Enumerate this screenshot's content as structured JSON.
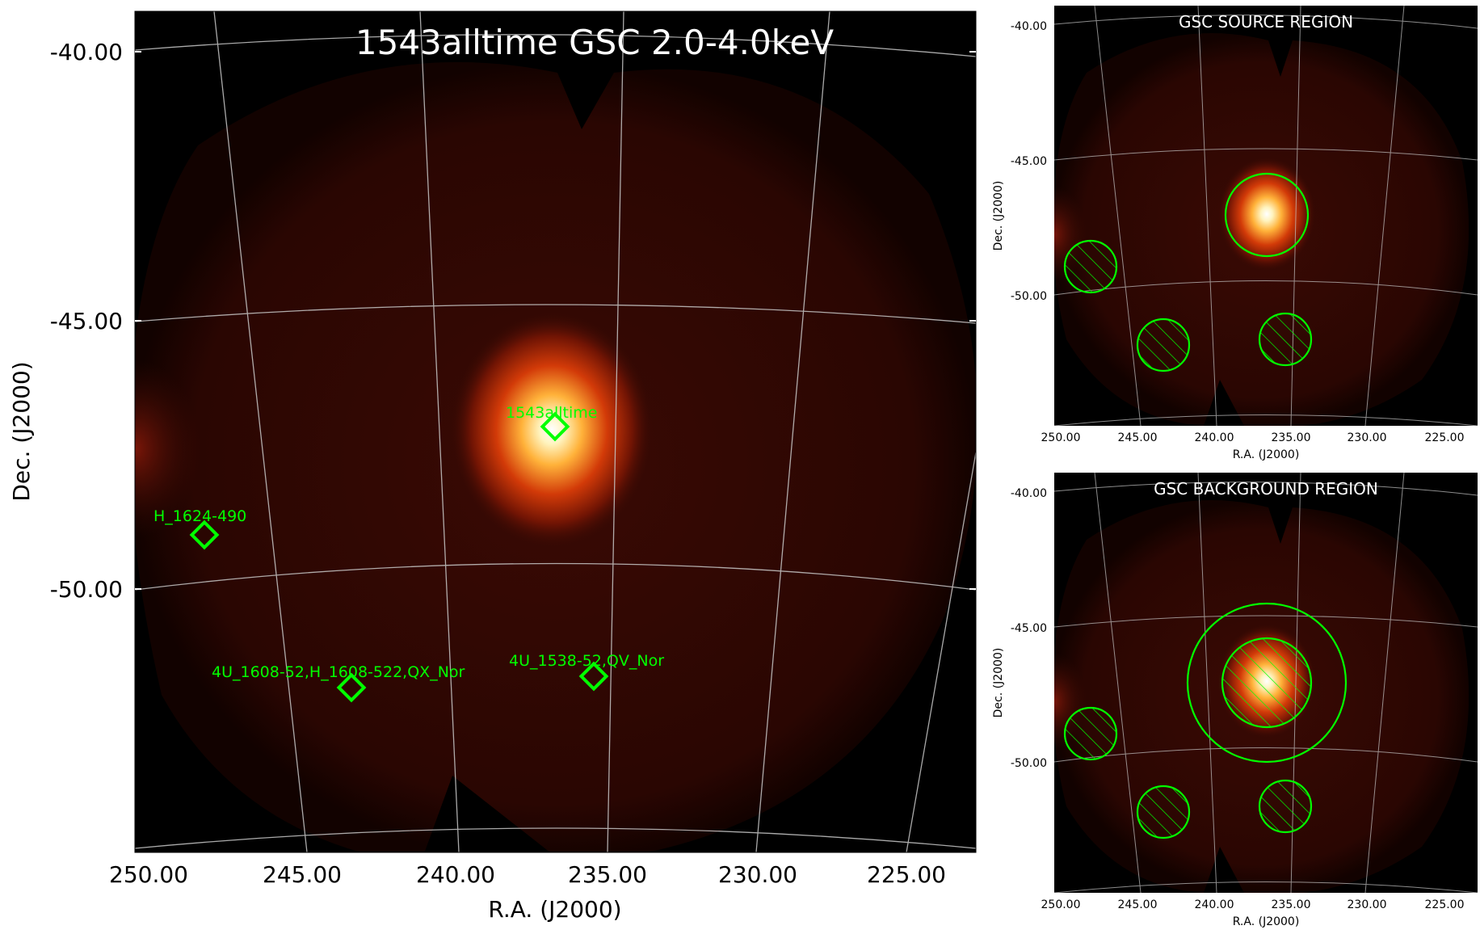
{
  "main": {
    "title": "1543alltime GSC 2.0-4.0keV",
    "xlabel": "R.A. (J2000)",
    "ylabel": "Dec. (J2000)",
    "xticks": [
      "250.00",
      "245.00",
      "240.00",
      "235.00",
      "230.00",
      "225.00"
    ],
    "yticks": [
      "-40.00",
      "-45.00",
      "-50.00"
    ],
    "sources": [
      {
        "label": "1543alltime",
        "ra": 236.6,
        "dec": -47.2
      },
      {
        "label": "H_1624-490",
        "ra": 248.1,
        "dec": -49.0
      },
      {
        "label": "4U_1608-52,H_1608-522,QX_Nor",
        "ra": 243.2,
        "dec": -52.4
      },
      {
        "label": "4U_1538-52,QV_Nor",
        "ra": 235.6,
        "dec": -52.1
      }
    ]
  },
  "source_panel": {
    "title": "GSC SOURCE REGION",
    "xlabel": "R.A. (J2000)",
    "ylabel": "Dec. (J2000)",
    "xticks": [
      "250.00",
      "245.00",
      "240.00",
      "235.00",
      "230.00",
      "225.00"
    ],
    "yticks": [
      "-40.00",
      "-45.00",
      "-50.00"
    ]
  },
  "background_panel": {
    "title": "GSC BACKGROUND REGION",
    "xlabel": "R.A. (J2000)",
    "ylabel": "Dec. (J2000)",
    "xticks": [
      "250.00",
      "245.00",
      "240.00",
      "235.00",
      "230.00",
      "225.00"
    ],
    "yticks": [
      "-40.00",
      "-45.00",
      "-50.00"
    ]
  },
  "colors": {
    "region": "#00ff00",
    "grid": "#c8c8c8",
    "background": "#000000"
  }
}
